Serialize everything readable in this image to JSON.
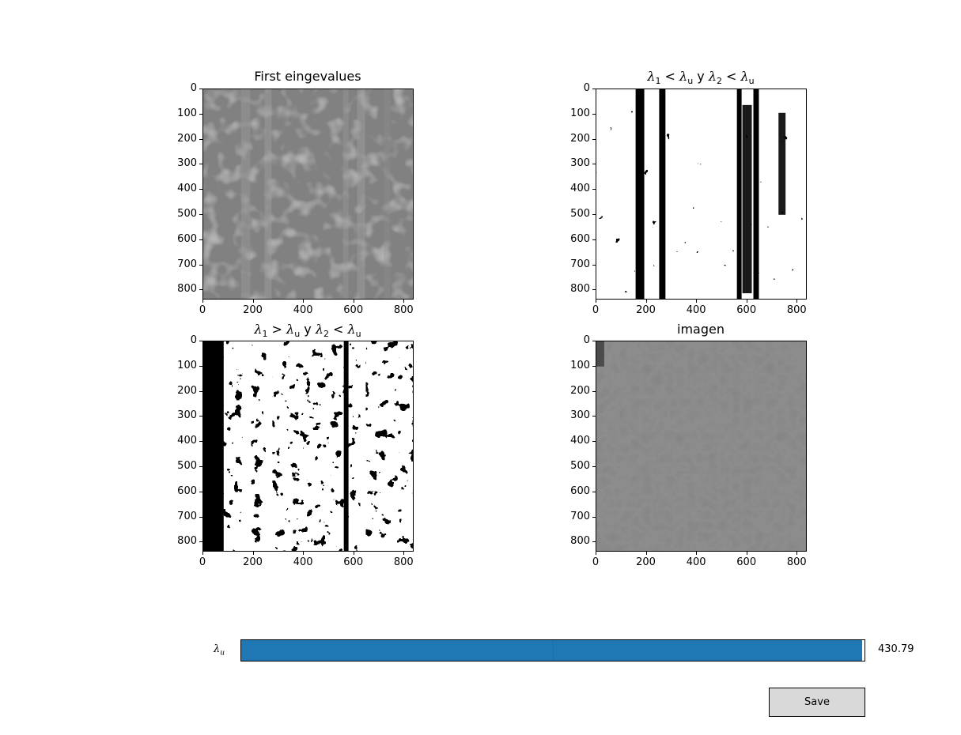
{
  "panels": {
    "first_eigenvalues": {
      "title": "First eingevalues"
    },
    "mask_both_below": {
      "title_parts": [
        "λ",
        "1",
        " < ",
        "λ",
        "u",
        " y ",
        "λ",
        "2",
        " < ",
        "λ",
        "u"
      ]
    },
    "mask_one_above": {
      "title_parts": [
        "λ",
        "1",
        " > ",
        "λ",
        "u",
        " y ",
        "λ",
        "2",
        " < ",
        "λ",
        "u"
      ]
    },
    "imagen": {
      "title": "imagen"
    }
  },
  "axes": {
    "y_ticks": [
      "0",
      "100",
      "200",
      "300",
      "400",
      "500",
      "600",
      "700",
      "800"
    ],
    "x_ticks": [
      "0",
      "200",
      "400",
      "600",
      "800"
    ],
    "y_values": [
      0,
      100,
      200,
      300,
      400,
      500,
      600,
      700,
      800
    ],
    "x_values": [
      0,
      200,
      400,
      600,
      800
    ],
    "range": [
      0,
      840
    ]
  },
  "slider": {
    "label_symbol": "λ",
    "label_sub": "u",
    "value_text": "430.79",
    "fill_fraction": 0.996,
    "initial_fraction": 0.5
  },
  "save_button": {
    "label": "Save"
  },
  "colors": {
    "slider_fill": "#1f77b4",
    "slider_initial_marker": "#d62728",
    "button_bg": "#d9d9d9"
  }
}
